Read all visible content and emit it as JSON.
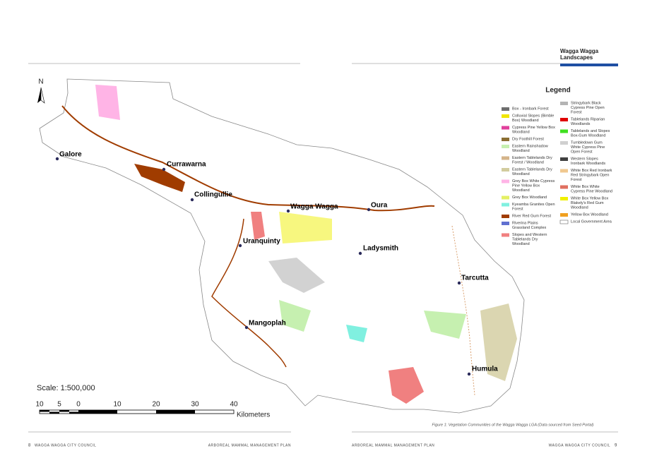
{
  "header": {
    "title_line1": "Wagga Wagga",
    "title_line2": "Landscapes"
  },
  "legend": {
    "title": "Legend",
    "items": [
      {
        "label": [
          "Box - Ironbark Forest"
        ],
        "color": "#6e6e6e"
      },
      {
        "label": [
          "Colluvial Slopes (Bimble",
          "Box) Woodland"
        ],
        "color": "#f0e600"
      },
      {
        "label": [
          "Cypress Pine Yellow Box",
          "Woodland"
        ],
        "color": "#e0409c"
      },
      {
        "label": [
          "Dry Foothill Forest"
        ],
        "color": "#8a6e32"
      },
      {
        "label": [
          "Eastern Rainshadow",
          "Woodland"
        ],
        "color": "#c6f0b0"
      },
      {
        "label": [
          "Eastern Tablelands Dry",
          "Forest / Woodland"
        ],
        "color": "#d4b48a"
      },
      {
        "label": [
          "Eastern Tablelands Dry",
          "Woodland"
        ],
        "color": "#d2cc9e"
      },
      {
        "label": [
          "Grey Box White Cypress",
          "Pine Yellow Box",
          "Woodland"
        ],
        "color": "#ffb4e6"
      },
      {
        "label": [
          "Grey Box Woodland"
        ],
        "color": "#e4f064"
      },
      {
        "label": [
          "Kyeamba Granites Open",
          "Forest"
        ],
        "color": "#80f0e0"
      },
      {
        "label": [
          "River Red Gum Forest"
        ],
        "color": "#a03c00"
      },
      {
        "label": [
          "Riverina Plains",
          "Grassland Complex"
        ],
        "color": "#6070d0"
      },
      {
        "label": [
          "Slopes and Western",
          "Tablelands Dry",
          "Woodland"
        ],
        "color": "#f08080"
      },
      {
        "label": [
          "Stringybark Black",
          "Cypress Pine Open",
          "Forest"
        ],
        "color": "#b4b4b4"
      },
      {
        "label": [
          "Tablelands Riparian",
          "Woodlands"
        ],
        "color": "#e00000"
      },
      {
        "label": [
          "Tablelands and Slopes",
          "Box-Gum Woodland"
        ],
        "color": "#40e020"
      },
      {
        "label": [
          "Tumbledown Gum",
          "White Cypress Pine",
          "Open Forest"
        ],
        "color": "#d0d0d0"
      },
      {
        "label": [
          "Western Slopes",
          "Ironbark Woodlands"
        ],
        "color": "#404040"
      },
      {
        "label": [
          "White Box Red Ironbark",
          "Red Stringybark Open",
          "Forest"
        ],
        "color": "#f0c890"
      },
      {
        "label": [
          "White Box White",
          "Cypress Pine Woodland"
        ],
        "color": "#e07060"
      },
      {
        "label": [
          "White Box Yellow Box",
          "Blakely's Red Gum",
          "Woodland"
        ],
        "color": "#f0f000"
      },
      {
        "label": [
          "Yellow Box Woodland"
        ],
        "color": "#f0a020"
      },
      {
        "label": [
          "Local Government Area"
        ],
        "color": "#ffffff"
      }
    ]
  },
  "map": {
    "north": "N",
    "towns": [
      "Galore",
      "Currawarna",
      "Collingullie",
      "Wagga Wagga",
      "Oura",
      "Uranquinty",
      "Ladysmith",
      "Tarcutta",
      "Mangoplah",
      "Humula"
    ],
    "scale_text": "Scale: 1:500,000",
    "scale_ticks": [
      10,
      5,
      0,
      10,
      20,
      30,
      40
    ],
    "scale_unit": "Kilometers"
  },
  "caption": "Figure 1: Vegetation Communities of the Wagga Wagga LGA (Data sourced from Seed Portal)",
  "footer": {
    "left_page": "8",
    "left_org": "WAGGA WAGGA CITY COUNCIL",
    "left_doc": "ARBOREAL MAMMAL MANAGEMENT PLAN",
    "right_doc": "ARBOREAL MAMMAL MANAGEMENT PLAN",
    "right_org": "WAGGA WAGGA CITY COUNCIL",
    "right_page": "9"
  }
}
